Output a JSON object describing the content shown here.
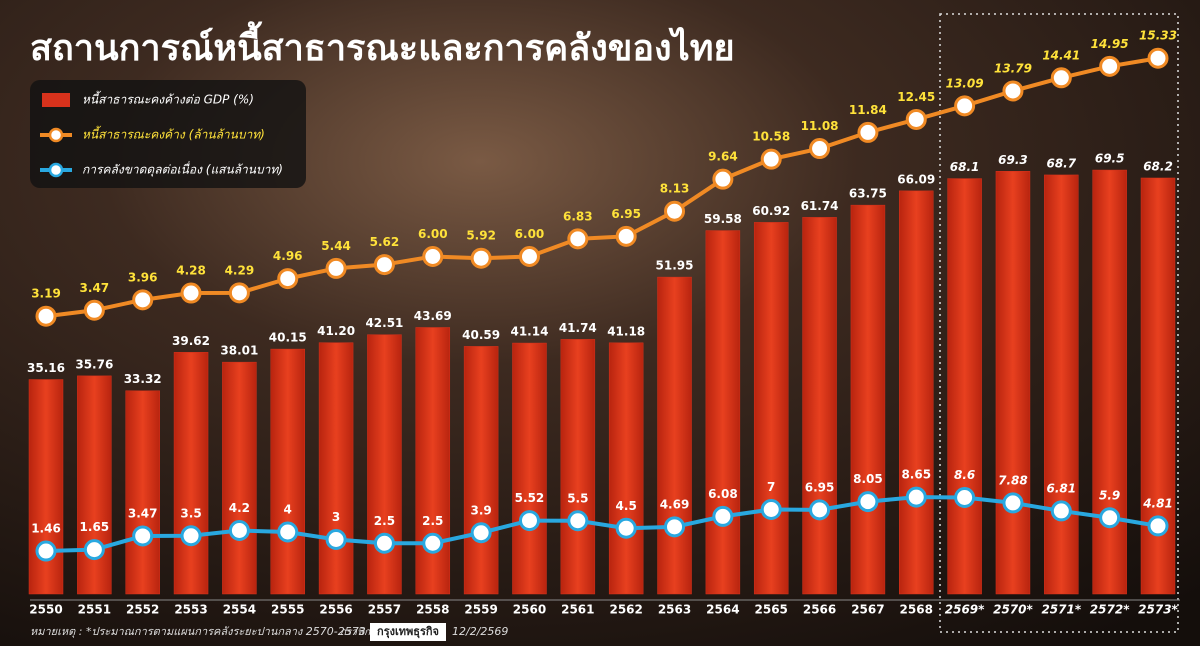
{
  "chart_data": {
    "type": "bar",
    "title": "สถานการณ์หนี้สาธารณะและการคลังของไทย",
    "categories": [
      "2550",
      "2551",
      "2552",
      "2553",
      "2554",
      "2555",
      "2556",
      "2557",
      "2558",
      "2559",
      "2560",
      "2561",
      "2562",
      "2563",
      "2564",
      "2565",
      "2566",
      "2567",
      "2568",
      "2569*",
      "2570*",
      "2571*",
      "2572*",
      "2573*"
    ],
    "series": [
      {
        "name": "หนี้สาธารณะคงค้างต่อ GDP (%)",
        "type": "bar",
        "color": "#d8321c",
        "values": [
          35.16,
          35.76,
          33.32,
          39.62,
          38.01,
          40.15,
          41.2,
          42.51,
          43.69,
          40.59,
          41.14,
          41.74,
          41.18,
          51.95,
          59.58,
          60.92,
          61.74,
          63.75,
          66.09,
          68.1,
          69.3,
          68.7,
          69.5,
          68.2
        ],
        "value_labels": [
          "35.16",
          "35.76",
          "33.32",
          "39.62",
          "38.01",
          "40.15",
          "41.20",
          "42.51",
          "43.69",
          "40.59",
          "41.14",
          "41.74",
          "41.18",
          "51.95",
          "59.58",
          "60.92",
          "61.74",
          "63.75",
          "66.09",
          "68.1",
          "69.3",
          "68.7",
          "69.5",
          "68.2"
        ]
      },
      {
        "name": "หนี้สาธารณะคงค้าง (ล้านล้านบาท)",
        "type": "line",
        "color": "#f08a24",
        "values": [
          3.19,
          3.47,
          3.96,
          4.28,
          4.29,
          4.96,
          5.44,
          5.62,
          6,
          5.92,
          6,
          6.83,
          6.95,
          8.13,
          9.64,
          10.58,
          11.08,
          11.84,
          12.45,
          13.09,
          13.79,
          14.41,
          14.95,
          15.33
        ],
        "value_labels": [
          "3.19",
          "3.47",
          "3.96",
          "4.28",
          "4.29",
          "4.96",
          "5.44",
          "5.62",
          "6.00",
          "5.92",
          "6.00",
          "6.83",
          "6.95",
          "8.13",
          "9.64",
          "10.58",
          "11.08",
          "11.84",
          "12.45",
          "13.09",
          "13.79",
          "14.41",
          "14.95",
          "15.33"
        ]
      },
      {
        "name": "การคลังขาดดุลต่อเนื่อง (แสนล้านบาท)",
        "type": "line",
        "color": "#29a8e0",
        "values": [
          1.46,
          1.65,
          3.47,
          3.5,
          4.2,
          4,
          3,
          2.5,
          2.5,
          3.9,
          5.52,
          5.5,
          4.5,
          4.69,
          6.08,
          7,
          6.95,
          8.05,
          8.65,
          8.6,
          7.88,
          6.81,
          5.9,
          4.81
        ],
        "value_labels": [
          "1.46",
          "1.65",
          "3.47",
          "3.5",
          "4.2",
          "4",
          "3",
          "2.5",
          "2.5",
          "3.9",
          "5.52",
          "5.5",
          "4.5",
          "4.69",
          "6.08",
          "7",
          "6.95",
          "8.05",
          "8.65",
          "8.6",
          "7.88",
          "6.81",
          "5.9",
          "4.81"
        ]
      }
    ],
    "note": "หมายเหตุ : *ประมาณการตามแผนการคลังระยะปานกลาง 2570-2573",
    "source_label": "กราฟิก",
    "source": "กรุงเทพธุรกิจ",
    "date": "12/2/2569"
  }
}
